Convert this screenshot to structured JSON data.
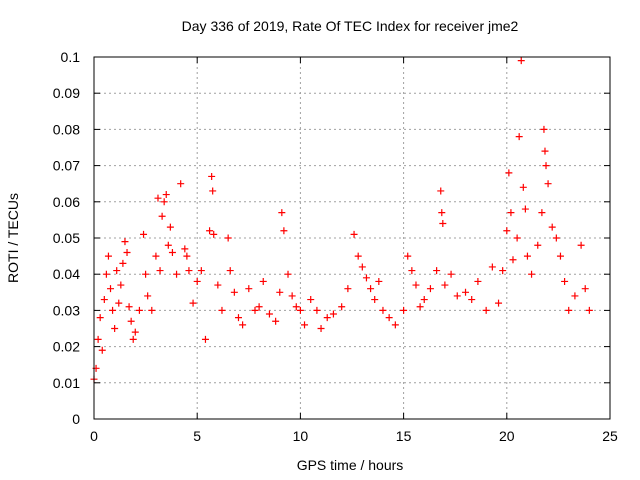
{
  "chart_data": {
    "type": "scatter",
    "title": "Day 336 of 2019, Rate Of TEC Index for receiver jme2",
    "xlabel": "GPS time / hours",
    "ylabel": "ROTI / TECUs",
    "xlim": [
      0,
      25
    ],
    "ylim": [
      0,
      0.1
    ],
    "xticks": [
      "0",
      "5",
      "10",
      "15",
      "20",
      "25"
    ],
    "yticks": [
      "0",
      "0.01",
      "0.02",
      "0.03",
      "0.04",
      "0.05",
      "0.06",
      "0.07",
      "0.08",
      "0.09",
      "0.1"
    ],
    "grid": true,
    "marker": "+",
    "marker_color": "#ff0000",
    "series": [
      {
        "points": [
          [
            0.0,
            0.011
          ],
          [
            0.1,
            0.014
          ],
          [
            0.2,
            0.022
          ],
          [
            0.3,
            0.028
          ],
          [
            0.4,
            0.019
          ],
          [
            0.5,
            0.033
          ],
          [
            0.6,
            0.04
          ],
          [
            0.7,
            0.045
          ],
          [
            0.8,
            0.036
          ],
          [
            0.9,
            0.03
          ],
          [
            1.0,
            0.025
          ],
          [
            1.1,
            0.041
          ],
          [
            1.2,
            0.032
          ],
          [
            1.3,
            0.037
          ],
          [
            1.4,
            0.043
          ],
          [
            1.5,
            0.049
          ],
          [
            1.6,
            0.046
          ],
          [
            1.7,
            0.031
          ],
          [
            1.8,
            0.027
          ],
          [
            1.9,
            0.022
          ],
          [
            2.0,
            0.024
          ],
          [
            2.2,
            0.03
          ],
          [
            2.4,
            0.051
          ],
          [
            2.5,
            0.04
          ],
          [
            2.6,
            0.034
          ],
          [
            2.8,
            0.03
          ],
          [
            3.0,
            0.045
          ],
          [
            3.1,
            0.061
          ],
          [
            3.2,
            0.041
          ],
          [
            3.3,
            0.056
          ],
          [
            3.4,
            0.06
          ],
          [
            3.5,
            0.062
          ],
          [
            3.6,
            0.048
          ],
          [
            3.7,
            0.053
          ],
          [
            3.8,
            0.046
          ],
          [
            4.0,
            0.04
          ],
          [
            4.2,
            0.065
          ],
          [
            4.4,
            0.047
          ],
          [
            4.5,
            0.045
          ],
          [
            4.6,
            0.041
          ],
          [
            4.8,
            0.032
          ],
          [
            5.0,
            0.038
          ],
          [
            5.2,
            0.041
          ],
          [
            5.4,
            0.022
          ],
          [
            5.6,
            0.052
          ],
          [
            5.7,
            0.067
          ],
          [
            5.75,
            0.063
          ],
          [
            5.8,
            0.051
          ],
          [
            6.0,
            0.037
          ],
          [
            6.2,
            0.03
          ],
          [
            6.5,
            0.05
          ],
          [
            6.6,
            0.041
          ],
          [
            6.8,
            0.035
          ],
          [
            7.0,
            0.028
          ],
          [
            7.2,
            0.026
          ],
          [
            7.5,
            0.036
          ],
          [
            7.8,
            0.03
          ],
          [
            8.0,
            0.031
          ],
          [
            8.2,
            0.038
          ],
          [
            8.5,
            0.029
          ],
          [
            8.8,
            0.027
          ],
          [
            9.0,
            0.035
          ],
          [
            9.1,
            0.057
          ],
          [
            9.2,
            0.052
          ],
          [
            9.4,
            0.04
          ],
          [
            9.6,
            0.034
          ],
          [
            9.8,
            0.031
          ],
          [
            10.0,
            0.03
          ],
          [
            10.2,
            0.026
          ],
          [
            10.5,
            0.033
          ],
          [
            10.8,
            0.03
          ],
          [
            11.0,
            0.025
          ],
          [
            11.3,
            0.028
          ],
          [
            11.6,
            0.029
          ],
          [
            12.0,
            0.031
          ],
          [
            12.3,
            0.036
          ],
          [
            12.6,
            0.051
          ],
          [
            12.8,
            0.045
          ],
          [
            13.0,
            0.042
          ],
          [
            13.2,
            0.039
          ],
          [
            13.4,
            0.036
          ],
          [
            13.6,
            0.033
          ],
          [
            13.8,
            0.038
          ],
          [
            14.0,
            0.03
          ],
          [
            14.3,
            0.028
          ],
          [
            14.6,
            0.026
          ],
          [
            15.0,
            0.03
          ],
          [
            15.2,
            0.045
          ],
          [
            15.4,
            0.041
          ],
          [
            15.6,
            0.037
          ],
          [
            15.8,
            0.031
          ],
          [
            16.0,
            0.033
          ],
          [
            16.3,
            0.036
          ],
          [
            16.6,
            0.041
          ],
          [
            16.8,
            0.063
          ],
          [
            16.85,
            0.057
          ],
          [
            16.9,
            0.054
          ],
          [
            17.0,
            0.037
          ],
          [
            17.3,
            0.04
          ],
          [
            17.6,
            0.034
          ],
          [
            18.0,
            0.035
          ],
          [
            18.3,
            0.033
          ],
          [
            18.6,
            0.038
          ],
          [
            19.0,
            0.03
          ],
          [
            19.3,
            0.042
          ],
          [
            19.6,
            0.032
          ],
          [
            19.8,
            0.041
          ],
          [
            20.0,
            0.052
          ],
          [
            20.1,
            0.068
          ],
          [
            20.2,
            0.057
          ],
          [
            20.3,
            0.044
          ],
          [
            20.5,
            0.05
          ],
          [
            20.6,
            0.078
          ],
          [
            20.7,
            0.099
          ],
          [
            20.8,
            0.064
          ],
          [
            20.9,
            0.058
          ],
          [
            21.0,
            0.045
          ],
          [
            21.2,
            0.04
          ],
          [
            21.5,
            0.048
          ],
          [
            21.7,
            0.057
          ],
          [
            21.8,
            0.08
          ],
          [
            21.85,
            0.074
          ],
          [
            21.9,
            0.07
          ],
          [
            22.0,
            0.065
          ],
          [
            22.2,
            0.053
          ],
          [
            22.4,
            0.05
          ],
          [
            22.6,
            0.045
          ],
          [
            22.8,
            0.038
          ],
          [
            23.0,
            0.03
          ],
          [
            23.3,
            0.034
          ],
          [
            23.6,
            0.048
          ],
          [
            23.8,
            0.036
          ],
          [
            24.0,
            0.03
          ]
        ]
      }
    ]
  }
}
